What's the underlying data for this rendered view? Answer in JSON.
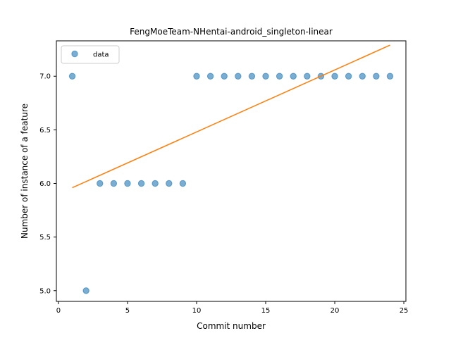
{
  "chart_data": {
    "type": "scatter",
    "title": "FengMoeTeam-NHentai-android_singleton-linear",
    "xlabel": "Commit number",
    "ylabel": "Number of instance of a feature",
    "xlim": [
      -0.15,
      25.15
    ],
    "ylim": [
      4.9,
      7.33
    ],
    "xticks": [
      0,
      5,
      10,
      15,
      20,
      25
    ],
    "xtick_labels": [
      "0",
      "5",
      "10",
      "15",
      "20",
      "25"
    ],
    "yticks": [
      5.0,
      5.5,
      6.0,
      6.5,
      7.0
    ],
    "ytick_labels": [
      "5.0",
      "5.5",
      "6.0",
      "6.5",
      "7.0"
    ],
    "grid": false,
    "legend_position": "top-left",
    "series": [
      {
        "name": "data",
        "type": "scatter",
        "color": "#1f77b4",
        "x": [
          1,
          2,
          3,
          4,
          5,
          6,
          7,
          8,
          9,
          10,
          11,
          12,
          13,
          14,
          15,
          16,
          17,
          18,
          19,
          20,
          21,
          22,
          23,
          24
        ],
        "y": [
          7,
          5,
          6,
          6,
          6,
          6,
          6,
          6,
          6,
          7,
          7,
          7,
          7,
          7,
          7,
          7,
          7,
          7,
          7,
          7,
          7,
          7,
          7,
          7
        ]
      },
      {
        "type": "line",
        "color": "#ff7f0e",
        "x": [
          1,
          24
        ],
        "y": [
          5.96,
          7.29
        ]
      }
    ]
  }
}
